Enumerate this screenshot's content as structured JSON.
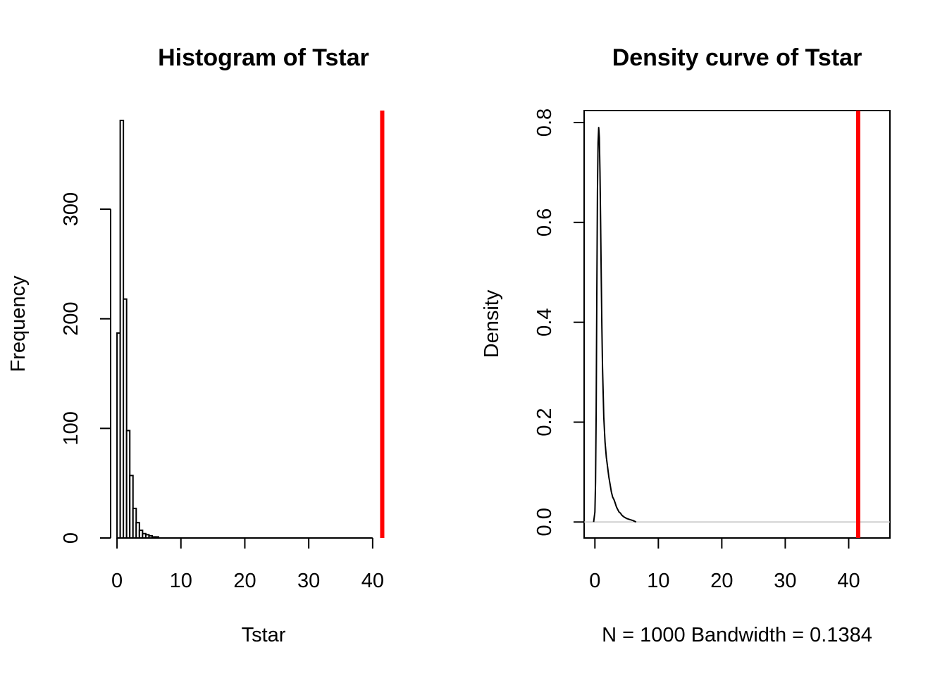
{
  "chart_data": [
    {
      "type": "histogram",
      "title": "Histogram of Tstar",
      "xlabel": "Tstar",
      "ylabel": "Frequency",
      "xlim": [
        -1,
        42
      ],
      "ylim": [
        0,
        390
      ],
      "xticks": [
        0,
        10,
        20,
        30,
        40
      ],
      "yticks": [
        0,
        100,
        200,
        300
      ],
      "bin_width": 0.5,
      "bins": [
        {
          "x0": 0.0,
          "x1": 0.5,
          "count": 187
        },
        {
          "x0": 0.5,
          "x1": 1.0,
          "count": 381
        },
        {
          "x0": 1.0,
          "x1": 1.5,
          "count": 218
        },
        {
          "x0": 1.5,
          "x1": 2.0,
          "count": 98
        },
        {
          "x0": 2.0,
          "x1": 2.5,
          "count": 57
        },
        {
          "x0": 2.5,
          "x1": 3.0,
          "count": 27
        },
        {
          "x0": 3.0,
          "x1": 3.5,
          "count": 14
        },
        {
          "x0": 3.5,
          "x1": 4.0,
          "count": 7
        },
        {
          "x0": 4.0,
          "x1": 4.5,
          "count": 4
        },
        {
          "x0": 4.5,
          "x1": 5.0,
          "count": 3
        },
        {
          "x0": 5.0,
          "x1": 5.5,
          "count": 2
        },
        {
          "x0": 5.5,
          "x1": 6.0,
          "count": 1
        },
        {
          "x0": 6.0,
          "x1": 6.5,
          "count": 1
        }
      ],
      "vline": {
        "x": 41.5,
        "color": "#ff0000"
      },
      "box": false
    },
    {
      "type": "line",
      "title": "Density curve of Tstar",
      "xlabel": "N = 1000   Bandwidth = 0.1384",
      "ylabel": "Density",
      "xlim": [
        -1.7,
        46.5
      ],
      "ylim": [
        -0.032,
        0.824
      ],
      "xticks": [
        0,
        10,
        20,
        30,
        40
      ],
      "yticks": [
        0.0,
        0.2,
        0.4,
        0.6,
        0.8
      ],
      "ytick_labels": [
        "0.0",
        "0.2",
        "0.4",
        "0.6",
        "0.8"
      ],
      "x": [
        -0.2,
        0.0,
        0.1,
        0.2,
        0.3,
        0.4,
        0.5,
        0.6,
        0.7,
        0.8,
        0.9,
        1.0,
        1.1,
        1.2,
        1.4,
        1.6,
        1.8,
        2.0,
        2.2,
        2.4,
        2.6,
        2.8,
        3.0,
        3.2,
        3.4,
        3.6,
        3.8,
        4.0,
        4.3,
        4.6,
        5.0,
        5.5,
        6.0,
        6.5
      ],
      "y": [
        0.0,
        0.02,
        0.08,
        0.22,
        0.45,
        0.66,
        0.76,
        0.79,
        0.77,
        0.7,
        0.6,
        0.49,
        0.39,
        0.31,
        0.21,
        0.16,
        0.13,
        0.11,
        0.09,
        0.075,
        0.06,
        0.05,
        0.045,
        0.038,
        0.03,
        0.025,
        0.02,
        0.018,
        0.013,
        0.01,
        0.007,
        0.005,
        0.003,
        0.0
      ],
      "baseline": {
        "y": 0,
        "color": "#bebebe"
      },
      "vline": {
        "x": 41.5,
        "color": "#ff0000"
      },
      "box": true
    }
  ]
}
